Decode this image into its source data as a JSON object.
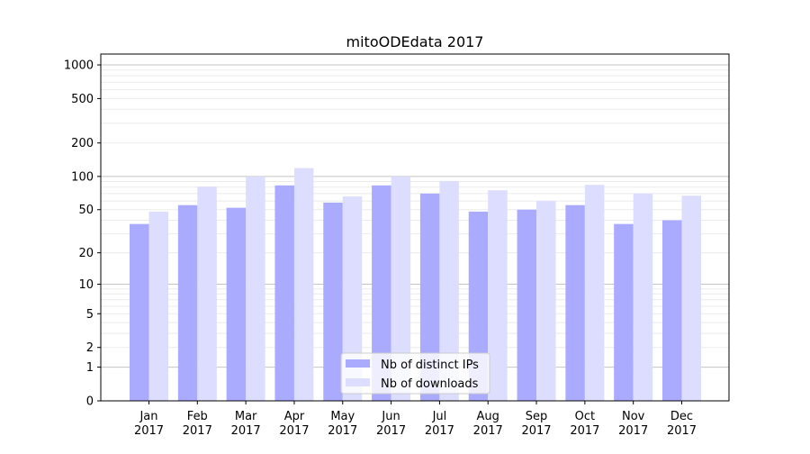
{
  "chart_data": {
    "type": "bar",
    "title": "mitoODEdata 2017",
    "xlabel": "",
    "ylabel": "",
    "yscale": "log(y+1)",
    "ylim": [
      0,
      1200
    ],
    "y_ticks": [
      0,
      1,
      2,
      5,
      10,
      20,
      50,
      100,
      200,
      500,
      1000
    ],
    "grid": true,
    "legend_position": "lower center",
    "categories": [
      "Jan\n2017",
      "Feb\n2017",
      "Mar\n2017",
      "Apr\n2017",
      "May\n2017",
      "Jun\n2017",
      "Jul\n2017",
      "Aug\n2017",
      "Sep\n2017",
      "Oct\n2017",
      "Nov\n2017",
      "Dec\n2017"
    ],
    "series": [
      {
        "name": "Nb of distinct IPs",
        "color": "#aaaaff",
        "values": [
          37,
          55,
          52,
          83,
          58,
          83,
          70,
          48,
          50,
          55,
          37,
          40
        ]
      },
      {
        "name": "Nb of downloads",
        "color": "#ddddff",
        "values": [
          48,
          81,
          100,
          119,
          66,
          100,
          91,
          75,
          60,
          84,
          70,
          67
        ]
      }
    ]
  }
}
